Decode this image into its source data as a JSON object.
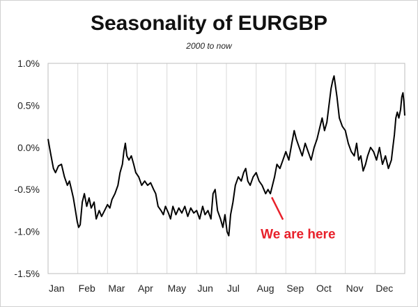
{
  "chart_data": {
    "type": "line",
    "title": "Seasonality of EURGBP",
    "subtitle": "2000 to now",
    "xlabel": "",
    "ylabel": "",
    "x_categories": [
      "Jan",
      "Feb",
      "Mar",
      "Apr",
      "May",
      "Jun",
      "Jul",
      "Aug",
      "Sep",
      "Oct",
      "Nov",
      "Dec"
    ],
    "y_ticks": [
      "1.0%",
      "0.5%",
      "0.0%",
      "-0.5%",
      "-1.0%",
      "-1.5%"
    ],
    "ylim": [
      -1.5,
      1.0
    ],
    "xlim": [
      0,
      12
    ],
    "grid": "vertical",
    "series": [
      {
        "color": "#000000",
        "points": [
          [
            0.0,
            0.1
          ],
          [
            0.05,
            0.0
          ],
          [
            0.1,
            -0.1
          ],
          [
            0.18,
            -0.25
          ],
          [
            0.25,
            -0.3
          ],
          [
            0.35,
            -0.22
          ],
          [
            0.45,
            -0.2
          ],
          [
            0.55,
            -0.35
          ],
          [
            0.65,
            -0.45
          ],
          [
            0.72,
            -0.4
          ],
          [
            0.8,
            -0.52
          ],
          [
            0.85,
            -0.6
          ],
          [
            0.92,
            -0.75
          ],
          [
            0.98,
            -0.88
          ],
          [
            1.03,
            -0.95
          ],
          [
            1.08,
            -0.92
          ],
          [
            1.15,
            -0.65
          ],
          [
            1.22,
            -0.55
          ],
          [
            1.3,
            -0.7
          ],
          [
            1.38,
            -0.6
          ],
          [
            1.45,
            -0.72
          ],
          [
            1.55,
            -0.65
          ],
          [
            1.62,
            -0.85
          ],
          [
            1.72,
            -0.75
          ],
          [
            1.8,
            -0.82
          ],
          [
            1.9,
            -0.75
          ],
          [
            2.0,
            -0.68
          ],
          [
            2.08,
            -0.72
          ],
          [
            2.15,
            -0.62
          ],
          [
            2.25,
            -0.55
          ],
          [
            2.35,
            -0.45
          ],
          [
            2.42,
            -0.3
          ],
          [
            2.5,
            -0.2
          ],
          [
            2.55,
            -0.05
          ],
          [
            2.6,
            0.05
          ],
          [
            2.65,
            -0.1
          ],
          [
            2.72,
            -0.15
          ],
          [
            2.8,
            -0.1
          ],
          [
            2.88,
            -0.2
          ],
          [
            2.95,
            -0.3
          ],
          [
            3.05,
            -0.35
          ],
          [
            3.15,
            -0.45
          ],
          [
            3.25,
            -0.4
          ],
          [
            3.35,
            -0.45
          ],
          [
            3.45,
            -0.42
          ],
          [
            3.55,
            -0.5
          ],
          [
            3.62,
            -0.55
          ],
          [
            3.7,
            -0.7
          ],
          [
            3.8,
            -0.75
          ],
          [
            3.88,
            -0.8
          ],
          [
            3.95,
            -0.7
          ],
          [
            4.05,
            -0.78
          ],
          [
            4.12,
            -0.85
          ],
          [
            4.2,
            -0.7
          ],
          [
            4.3,
            -0.8
          ],
          [
            4.4,
            -0.72
          ],
          [
            4.5,
            -0.78
          ],
          [
            4.6,
            -0.7
          ],
          [
            4.7,
            -0.82
          ],
          [
            4.8,
            -0.72
          ],
          [
            4.9,
            -0.78
          ],
          [
            5.0,
            -0.75
          ],
          [
            5.1,
            -0.85
          ],
          [
            5.2,
            -0.7
          ],
          [
            5.28,
            -0.8
          ],
          [
            5.38,
            -0.75
          ],
          [
            5.48,
            -0.85
          ],
          [
            5.55,
            -0.55
          ],
          [
            5.62,
            -0.5
          ],
          [
            5.7,
            -0.75
          ],
          [
            5.8,
            -0.85
          ],
          [
            5.88,
            -0.95
          ],
          [
            5.95,
            -0.8
          ],
          [
            6.02,
            -1.0
          ],
          [
            6.08,
            -1.05
          ],
          [
            6.14,
            -0.8
          ],
          [
            6.22,
            -0.65
          ],
          [
            6.3,
            -0.45
          ],
          [
            6.4,
            -0.35
          ],
          [
            6.5,
            -0.4
          ],
          [
            6.58,
            -0.3
          ],
          [
            6.65,
            -0.25
          ],
          [
            6.72,
            -0.4
          ],
          [
            6.8,
            -0.45
          ],
          [
            6.9,
            -0.35
          ],
          [
            7.0,
            -0.3
          ],
          [
            7.1,
            -0.4
          ],
          [
            7.2,
            -0.45
          ],
          [
            7.32,
            -0.55
          ],
          [
            7.4,
            -0.5
          ],
          [
            7.48,
            -0.55
          ],
          [
            7.55,
            -0.45
          ],
          [
            7.62,
            -0.35
          ],
          [
            7.7,
            -0.2
          ],
          [
            7.8,
            -0.25
          ],
          [
            7.9,
            -0.15
          ],
          [
            8.0,
            -0.05
          ],
          [
            8.1,
            -0.15
          ],
          [
            8.2,
            0.05
          ],
          [
            8.28,
            0.2
          ],
          [
            8.35,
            0.1
          ],
          [
            8.45,
            0.0
          ],
          [
            8.55,
            -0.1
          ],
          [
            8.65,
            0.05
          ],
          [
            8.75,
            -0.05
          ],
          [
            8.85,
            -0.15
          ],
          [
            8.95,
            0.0
          ],
          [
            9.05,
            0.1
          ],
          [
            9.15,
            0.25
          ],
          [
            9.22,
            0.35
          ],
          [
            9.3,
            0.2
          ],
          [
            9.38,
            0.3
          ],
          [
            9.45,
            0.5
          ],
          [
            9.52,
            0.7
          ],
          [
            9.58,
            0.8
          ],
          [
            9.62,
            0.85
          ],
          [
            9.66,
            0.75
          ],
          [
            9.72,
            0.6
          ],
          [
            9.8,
            0.35
          ],
          [
            9.9,
            0.25
          ],
          [
            10.0,
            0.2
          ],
          [
            10.1,
            0.05
          ],
          [
            10.2,
            -0.05
          ],
          [
            10.3,
            -0.1
          ],
          [
            10.38,
            0.05
          ],
          [
            10.45,
            -0.15
          ],
          [
            10.52,
            -0.1
          ],
          [
            10.6,
            -0.28
          ],
          [
            10.68,
            -0.2
          ],
          [
            10.75,
            -0.1
          ],
          [
            10.85,
            0.0
          ],
          [
            10.95,
            -0.05
          ],
          [
            11.05,
            -0.15
          ],
          [
            11.15,
            0.0
          ],
          [
            11.25,
            -0.2
          ],
          [
            11.35,
            -0.1
          ],
          [
            11.45,
            -0.25
          ],
          [
            11.55,
            -0.15
          ],
          [
            11.6,
            0.0
          ],
          [
            11.65,
            0.15
          ],
          [
            11.7,
            0.35
          ],
          [
            11.75,
            0.42
          ],
          [
            11.8,
            0.35
          ],
          [
            11.86,
            0.45
          ],
          [
            11.9,
            0.6
          ],
          [
            11.94,
            0.65
          ],
          [
            11.97,
            0.55
          ],
          [
            12.0,
            0.38
          ]
        ]
      }
    ],
    "annotation": {
      "text": "We are here",
      "color": "#e8202a",
      "points_to": [
        7.48,
        -0.56
      ]
    }
  }
}
